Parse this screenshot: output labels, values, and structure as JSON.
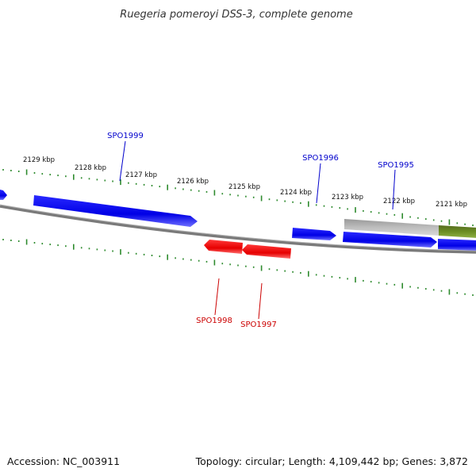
{
  "title": "Ruegeria pomeroyi DSS-3, complete genome",
  "footer": {
    "accession": "Accession: NC_003911",
    "summary": "Topology: circular; Length: 4,109,442 bp; Genes: 3,872"
  },
  "scale_ticks": [
    "2129 kbp",
    "2128 kbp",
    "2127 kbp",
    "2126 kbp",
    "2125 kbp",
    "2124 kbp",
    "2123 kbp",
    "2122 kbp",
    "2121 kbp"
  ],
  "genes": [
    {
      "id": "SPO1999",
      "strand": "forward",
      "color": "#0000cc"
    },
    {
      "id": "SPO1998",
      "strand": "reverse",
      "color": "#cc0000"
    },
    {
      "id": "SPO1997",
      "strand": "reverse",
      "color": "#cc0000"
    },
    {
      "id": "SPO1996",
      "strand": "forward",
      "color": "#0000cc"
    },
    {
      "id": "SPO1995",
      "strand": "forward",
      "color": "#0000cc"
    }
  ],
  "colors": {
    "forward_gene": "#0000ee",
    "reverse_gene": "#ee0000",
    "tick": "#2e8b2e",
    "backbone": "#777777",
    "feature_grey": "#bbbbbb",
    "feature_green": "#6b8e23"
  }
}
